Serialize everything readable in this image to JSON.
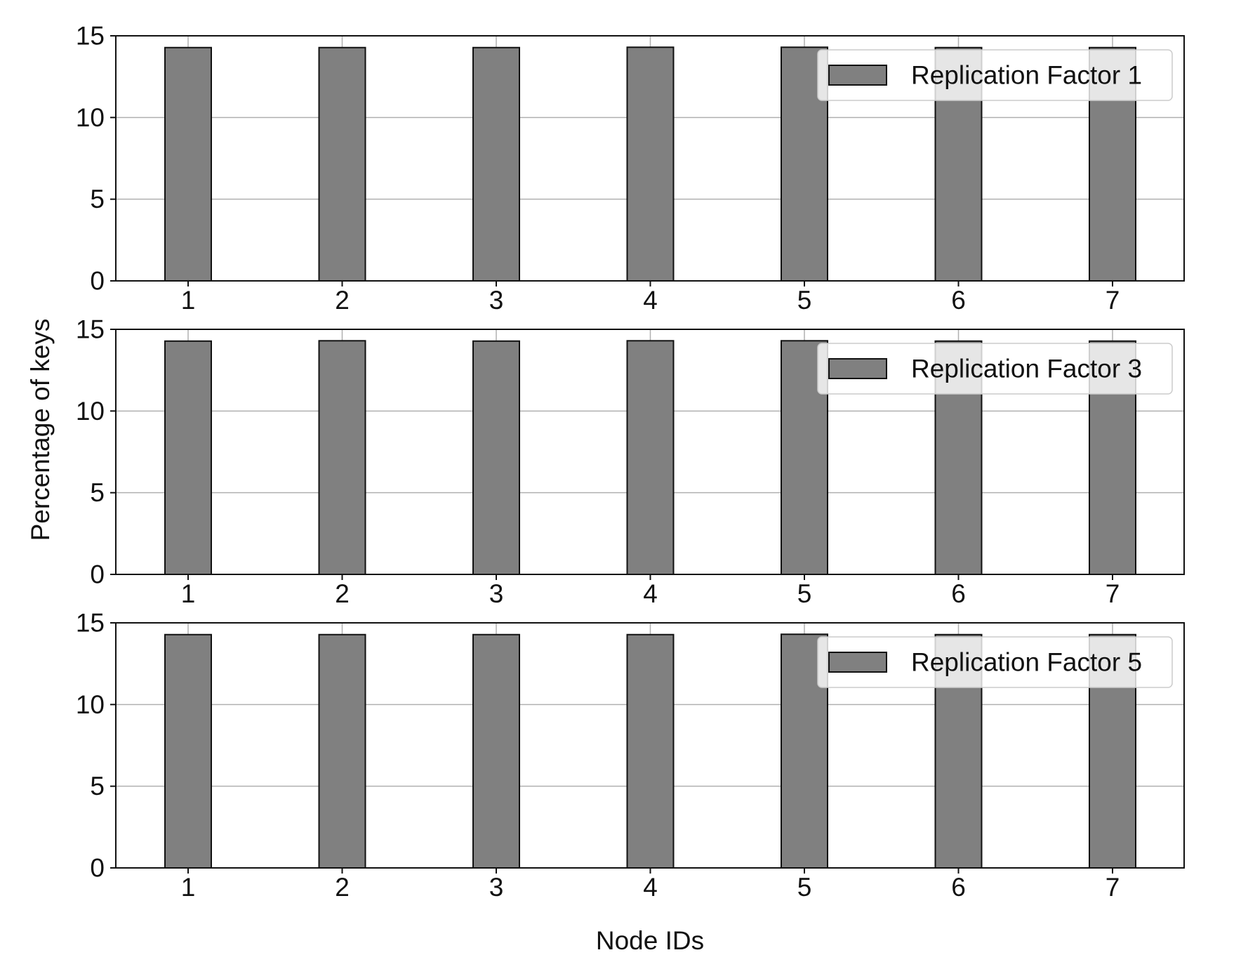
{
  "chart_data": {
    "type": "bar",
    "xlabel": "Node IDs",
    "ylabel": "Percentage of keys",
    "categories": [
      "1",
      "2",
      "3",
      "4",
      "5",
      "6",
      "7"
    ],
    "ylim": [
      0,
      15
    ],
    "yticks": [
      0,
      5,
      10,
      15
    ],
    "grid": true,
    "legend_position": "top-right",
    "colors": {
      "bar_fill": "#808080",
      "bar_edge": "#111111",
      "grid": "#b0b0b0",
      "axes": "#111111"
    },
    "panels": [
      {
        "series": [
          {
            "name": "Replication Factor 1",
            "values": [
              14.28,
              14.28,
              14.28,
              14.3,
              14.3,
              14.28,
              14.28
            ]
          }
        ]
      },
      {
        "series": [
          {
            "name": "Replication Factor 3",
            "values": [
              14.28,
              14.3,
              14.28,
              14.3,
              14.3,
              14.28,
              14.28
            ]
          }
        ]
      },
      {
        "series": [
          {
            "name": "Replication Factor 5",
            "values": [
              14.28,
              14.28,
              14.28,
              14.28,
              14.3,
              14.28,
              14.28
            ]
          }
        ]
      }
    ]
  }
}
